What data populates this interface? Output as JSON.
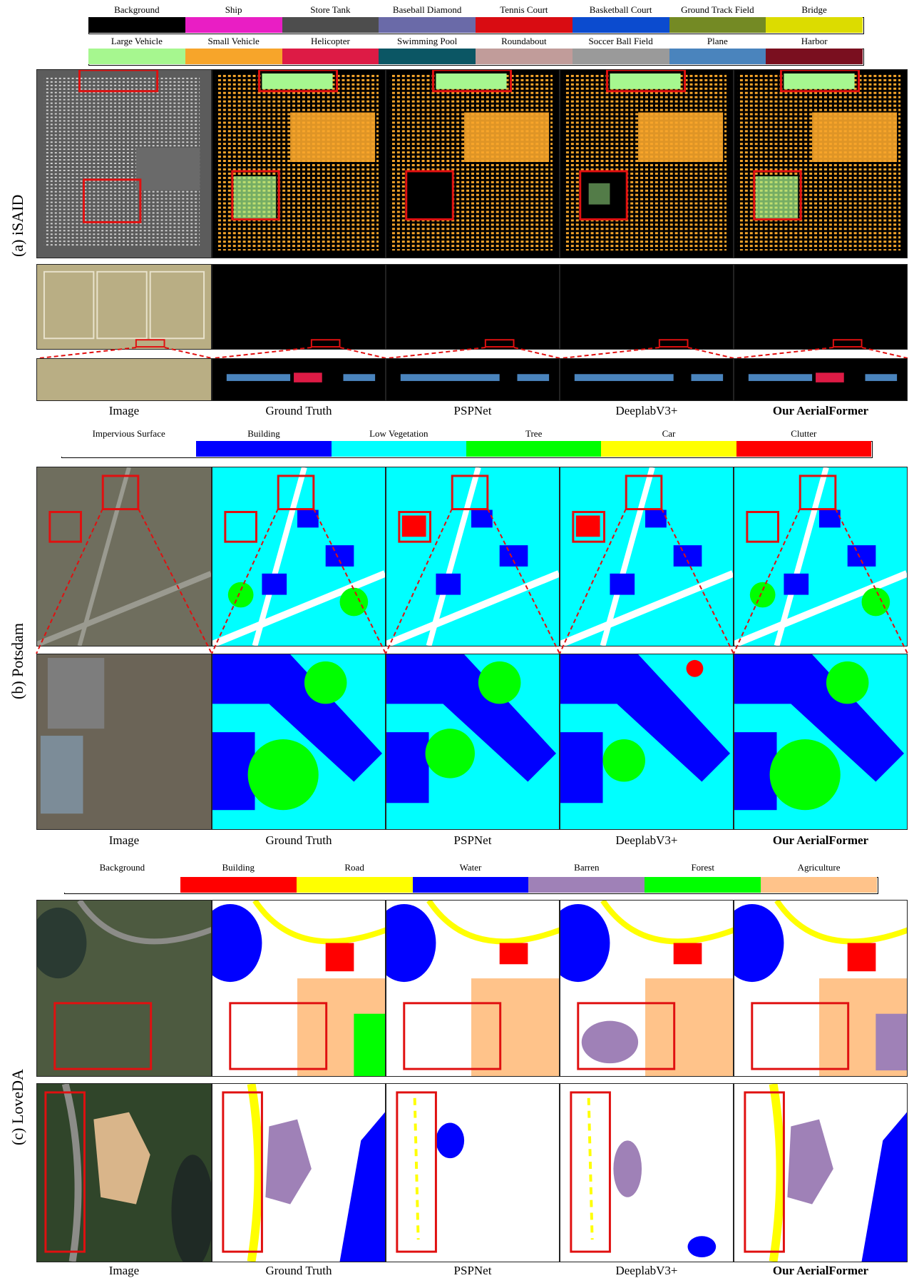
{
  "sections": [
    {
      "label": "(a) iSAID",
      "legend_row1": [
        {
          "name": "Background",
          "color": "#000000"
        },
        {
          "name": "Ship",
          "color": "#e91ec4"
        },
        {
          "name": "Store Tank",
          "color": "#4d4d4d"
        },
        {
          "name": "Baseball Diamond",
          "color": "#6a6aa8"
        },
        {
          "name": "Tennis Court",
          "color": "#d90c12"
        },
        {
          "name": "Basketball Court",
          "color": "#0b4bcf"
        },
        {
          "name": "Ground Track Field",
          "color": "#748a24"
        },
        {
          "name": "Bridge",
          "color": "#dcdc00"
        }
      ],
      "legend_row2": [
        {
          "name": "Large Vehicle",
          "color": "#a6f78f"
        },
        {
          "name": "Small Vehicle",
          "color": "#f7a52a"
        },
        {
          "name": "Helicopter",
          "color": "#dd1b45"
        },
        {
          "name": "Swimming Pool",
          "color": "#0b5664"
        },
        {
          "name": "Roundabout",
          "color": "#c19c9a"
        },
        {
          "name": "Soccer Ball Field",
          "color": "#9a9a9a"
        },
        {
          "name": "Plane",
          "color": "#4a84bd"
        },
        {
          "name": "Harbor",
          "color": "#7a0f1f"
        }
      ]
    },
    {
      "label": "(b) Potsdam",
      "legend": [
        {
          "name": "Impervious Surface",
          "color": "#ffffff"
        },
        {
          "name": "Building",
          "color": "#0000ff"
        },
        {
          "name": "Low Vegetation",
          "color": "#00ffff"
        },
        {
          "name": "Tree",
          "color": "#00ff00"
        },
        {
          "name": "Car",
          "color": "#ffff00"
        },
        {
          "name": "Clutter",
          "color": "#ff0000"
        }
      ]
    },
    {
      "label": "(c) LoveDA",
      "legend": [
        {
          "name": "Background",
          "color": "#ffffff"
        },
        {
          "name": "Building",
          "color": "#ff0000"
        },
        {
          "name": "Road",
          "color": "#ffff00"
        },
        {
          "name": "Water",
          "color": "#0000ff"
        },
        {
          "name": "Barren",
          "color": "#9f81b7"
        },
        {
          "name": "Forest",
          "color": "#00ff00"
        },
        {
          "name": "Agriculture",
          "color": "#ffc38a"
        }
      ]
    }
  ],
  "captions": [
    "Image",
    "Ground Truth",
    "PSPNet",
    "DeeplabV3+",
    "Our AerialFormer"
  ]
}
